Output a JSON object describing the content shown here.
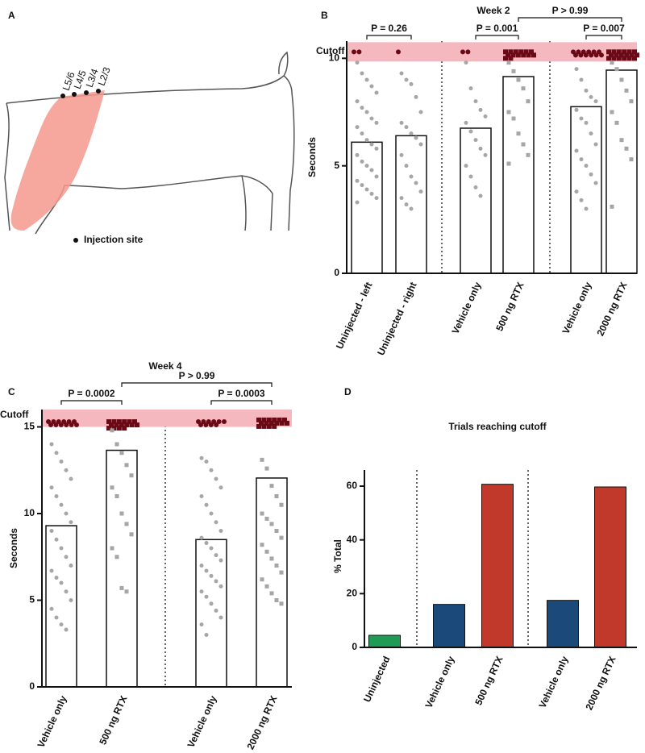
{
  "panel_a": {
    "letter": "A",
    "levels": [
      "L5/6",
      "L4/5",
      "L3/4",
      "L2/3"
    ],
    "legend": "Injection site"
  },
  "chart_data": [
    {
      "type": "bar_scatter",
      "panel": "B",
      "title": "Week 2",
      "ylabel": "Seconds",
      "ylim": [
        0,
        10.8
      ],
      "yticks": [
        0,
        5,
        10
      ],
      "cutoff_label": "Cutoff",
      "cutoff_band": [
        9.85,
        10.75
      ],
      "band_color": "#f6b8bf",
      "point_color": "#a6a6a6",
      "cutoff_point_color": "#6b0a16",
      "label_color": "#c8102e",
      "annotations": [
        "P = 0.26",
        "P = 0.001",
        "P > 0.99",
        "P = 0.007"
      ],
      "groups": [
        {
          "name": "Uninjected - left",
          "mean": 6.1,
          "marker": "circle",
          "points": [
            10.3,
            10.3,
            9.8,
            9.3,
            9.0,
            8.7,
            8.4,
            8.0,
            7.7,
            7.5,
            7.2,
            7.0,
            6.8,
            6.5,
            6.2,
            6.0,
            5.8,
            5.5,
            5.2,
            5.0,
            4.8,
            4.5,
            4.3,
            4.1,
            3.9,
            3.7,
            3.5,
            3.3
          ]
        },
        {
          "name": "Uninjected - right",
          "mean": 6.4,
          "marker": "circle",
          "points": [
            10.3,
            9.3,
            9.0,
            8.8,
            8.2,
            7.5,
            7.0,
            6.8,
            6.5,
            6.3,
            6.0,
            5.5,
            5.0,
            4.5,
            4.2,
            3.8,
            3.5,
            3.2,
            3.0
          ]
        },
        {
          "name": "Vehicle only",
          "mean": 6.75,
          "marker": "circle",
          "points": [
            10.3,
            10.3,
            9.8,
            8.6,
            8.0,
            7.6,
            7.3,
            7.0,
            6.6,
            6.2,
            5.8,
            5.5,
            5.0,
            4.5,
            4.0,
            3.6
          ]
        },
        {
          "name": "500 ng RTX",
          "mean": 9.15,
          "marker": "square",
          "points": [
            10.3,
            10.3,
            10.3,
            10.3,
            10.3,
            10.3,
            10.3,
            10.3,
            10.3,
            10.3,
            10.3,
            10.3,
            10.3,
            10.3,
            9.8,
            9.4,
            9.0,
            8.6,
            8.0,
            7.5,
            7.2,
            6.5,
            6.0,
            5.5,
            5.1
          ]
        },
        {
          "name": "Vehicle only",
          "mean": 7.75,
          "marker": "circle",
          "points": [
            10.3,
            10.3,
            10.3,
            10.3,
            10.3,
            10.3,
            10.3,
            10.3,
            10.3,
            10.3,
            10.3,
            10.3,
            9.5,
            9.0,
            8.5,
            8.2,
            8.0,
            7.6,
            7.2,
            7.0,
            6.5,
            6.0,
            5.7,
            5.3,
            5.0,
            4.6,
            4.2,
            3.8,
            3.4,
            3.0
          ]
        },
        {
          "name": "2000 ng RTX",
          "mean": 9.45,
          "marker": "square",
          "points": [
            10.3,
            10.3,
            10.3,
            10.3,
            10.3,
            10.3,
            10.3,
            10.3,
            10.3,
            10.3,
            10.3,
            10.3,
            10.3,
            10.3,
            10.3,
            10.3,
            10.3,
            10.3,
            9.8,
            9.5,
            9.0,
            8.5,
            8.0,
            7.5,
            7.0,
            6.2,
            5.8,
            5.3,
            3.1
          ]
        }
      ]
    },
    {
      "type": "bar_scatter",
      "panel": "C",
      "title": "Week 4",
      "ylabel": "Seconds",
      "ylim": [
        0,
        16
      ],
      "yticks": [
        0,
        5,
        10,
        15
      ],
      "cutoff_label": "Cutoff",
      "cutoff_band": [
        15,
        16
      ],
      "band_color": "#f6b8bf",
      "point_color": "#a6a6a6",
      "cutoff_point_color": "#6b0a16",
      "label_color": "#c8102e",
      "annotations": [
        "P = 0.0002",
        "P > 0.99",
        "P = 0.0003"
      ],
      "groups": [
        {
          "name": "Vehicle only",
          "mean": 9.3,
          "marker": "circle",
          "points": [
            15.3,
            15.3,
            15.3,
            15.3,
            15.3,
            15.3,
            15.3,
            15.3,
            15.3,
            15.3,
            15.3,
            15.3,
            14.0,
            13.5,
            13.0,
            12.5,
            12.0,
            11.5,
            11.0,
            10.5,
            10.0,
            9.5,
            9.0,
            8.5,
            8.0,
            7.5,
            7.0,
            6.7,
            6.3,
            6.0,
            5.5,
            5.0,
            4.5,
            4.0,
            3.6,
            3.3
          ]
        },
        {
          "name": "500 ng RTX",
          "mean": 13.65,
          "marker": "square",
          "points": [
            15.3,
            15.3,
            15.3,
            15.3,
            15.3,
            15.3,
            15.3,
            15.3,
            15.3,
            15.3,
            15.3,
            15.3,
            15.3,
            15.3,
            15.3,
            15.3,
            14.8,
            14.0,
            13.5,
            12.8,
            12.2,
            11.5,
            11.0,
            10.0,
            9.4,
            8.8,
            8.0,
            7.5,
            5.7,
            5.5
          ]
        },
        {
          "name": "Vehicle only",
          "mean": 8.5,
          "marker": "circle",
          "points": [
            15.3,
            15.3,
            15.3,
            15.3,
            15.3,
            15.3,
            15.3,
            15.3,
            15.3,
            15.3,
            13.2,
            13.0,
            12.5,
            12.0,
            11.5,
            11.0,
            10.5,
            10.0,
            9.5,
            9.0,
            8.6,
            8.3,
            8.0,
            7.6,
            7.3,
            7.0,
            6.7,
            6.4,
            6.1,
            5.8,
            5.5,
            5.2,
            4.8,
            4.4,
            4.0,
            3.6,
            3.0
          ]
        },
        {
          "name": "2000 ng RTX",
          "mean": 12.05,
          "marker": "square",
          "points": [
            15.4,
            15.4,
            15.4,
            15.4,
            15.4,
            15.4,
            15.4,
            15.4,
            15.4,
            15.4,
            15.4,
            15.4,
            15.4,
            15.4,
            15.4,
            15.4,
            13.1,
            12.6,
            11.6,
            11.0,
            10.5,
            10.0,
            9.7,
            9.4,
            9.0,
            8.6,
            8.2,
            7.8,
            7.4,
            7.0,
            6.6,
            6.2,
            5.8,
            5.4,
            5.0,
            4.8
          ]
        }
      ]
    },
    {
      "type": "bar",
      "panel": "D",
      "title": "Trials reaching cutoff",
      "ylabel": "% Total",
      "ylim": [
        0,
        66
      ],
      "yticks": [
        0,
        20,
        40,
        60
      ],
      "categories": [
        "Uninjected",
        "Vehicle only",
        "500 ng RTX",
        "Vehicle only",
        "2000 ng RTX"
      ],
      "values": [
        4.5,
        16,
        60.7,
        17.5,
        59.7
      ],
      "colors": [
        "#1e9b55",
        "#1b4a7a",
        "#c0392b",
        "#1b4a7a",
        "#c0392b"
      ]
    }
  ]
}
